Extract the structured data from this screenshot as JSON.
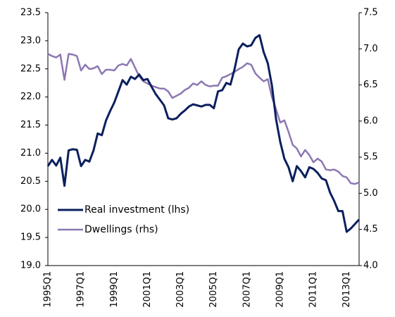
{
  "chart_data": {
    "type": "line",
    "categories": [
      "1995Q1",
      null,
      null,
      null,
      null,
      null,
      null,
      null,
      "1997Q1",
      null,
      null,
      null,
      null,
      null,
      null,
      null,
      "1999Q1",
      null,
      null,
      null,
      null,
      null,
      null,
      null,
      "2001Q1",
      null,
      null,
      null,
      null,
      null,
      null,
      null,
      "2003Q1",
      null,
      null,
      null,
      null,
      null,
      null,
      null,
      "2005Q1",
      null,
      null,
      null,
      null,
      null,
      null,
      null,
      "2007Q1",
      null,
      null,
      null,
      null,
      null,
      null,
      null,
      "2009Q1",
      null,
      null,
      null,
      null,
      null,
      null,
      null,
      "2011Q1",
      null,
      null,
      null,
      null,
      null,
      null,
      null,
      "2013Q1",
      null,
      null,
      null
    ],
    "series": [
      {
        "name": "Real investment (lhs)",
        "color": "#0b1f5e",
        "axis": "y",
        "values": [
          20.77,
          20.88,
          20.78,
          20.92,
          20.42,
          21.05,
          21.07,
          21.06,
          20.77,
          20.88,
          20.85,
          21.05,
          21.35,
          21.32,
          21.58,
          21.75,
          21.9,
          22.1,
          22.3,
          22.22,
          22.36,
          22.32,
          22.4,
          22.3,
          22.32,
          22.18,
          22.05,
          21.95,
          21.85,
          21.62,
          21.6,
          21.62,
          21.7,
          21.76,
          21.83,
          21.87,
          21.85,
          21.83,
          21.86,
          21.86,
          21.8,
          22.1,
          22.12,
          22.25,
          22.22,
          22.5,
          22.85,
          22.95,
          22.9,
          22.92,
          23.05,
          23.1,
          22.8,
          22.6,
          22.2,
          21.6,
          21.2,
          20.9,
          20.75,
          20.5,
          20.77,
          20.68,
          20.57,
          20.75,
          20.72,
          20.65,
          20.55,
          20.52,
          20.3,
          20.15,
          19.97,
          19.97,
          19.6,
          19.66,
          19.74,
          19.82
        ]
      },
      {
        "name": "Dwellings (rhs)",
        "color": "#8c78b2",
        "axis": "y2",
        "values": [
          6.93,
          6.9,
          6.88,
          6.92,
          6.57,
          6.93,
          6.92,
          6.9,
          6.7,
          6.78,
          6.72,
          6.73,
          6.76,
          6.65,
          6.71,
          6.71,
          6.7,
          6.77,
          6.79,
          6.77,
          6.86,
          6.74,
          6.62,
          6.55,
          6.52,
          6.49,
          6.47,
          6.45,
          6.45,
          6.41,
          6.32,
          6.35,
          6.38,
          6.43,
          6.46,
          6.52,
          6.5,
          6.55,
          6.5,
          6.48,
          6.49,
          6.49,
          6.6,
          6.62,
          6.65,
          6.68,
          6.72,
          6.75,
          6.8,
          6.78,
          6.66,
          6.6,
          6.55,
          6.58,
          6.33,
          6.16,
          5.98,
          6.01,
          5.85,
          5.67,
          5.62,
          5.51,
          5.6,
          5.53,
          5.43,
          5.48,
          5.44,
          5.33,
          5.32,
          5.33,
          5.3,
          5.24,
          5.22,
          5.14,
          5.13,
          5.15
        ]
      }
    ],
    "ylim": [
      19,
      23.5
    ],
    "yticks": [
      {
        "value": 19,
        "label": "19.0"
      },
      19.5,
      {
        "value": 20,
        "label": "20.0"
      },
      20.5,
      {
        "value": 21,
        "label": "21.0"
      },
      21.5,
      {
        "value": 22,
        "label": "22.0"
      },
      22.5,
      {
        "value": 23,
        "label": "23.0"
      },
      23.5
    ],
    "y2lim": [
      4,
      7.5
    ],
    "y2ticks": [
      {
        "value": 4,
        "label": "4.0"
      },
      4.5,
      {
        "value": 5,
        "label": "5.0"
      },
      5.5,
      {
        "value": 6,
        "label": "6.0"
      },
      6.5,
      {
        "value": 7,
        "label": "7.0"
      },
      7.5
    ],
    "grid": false,
    "legend": "lower left"
  }
}
